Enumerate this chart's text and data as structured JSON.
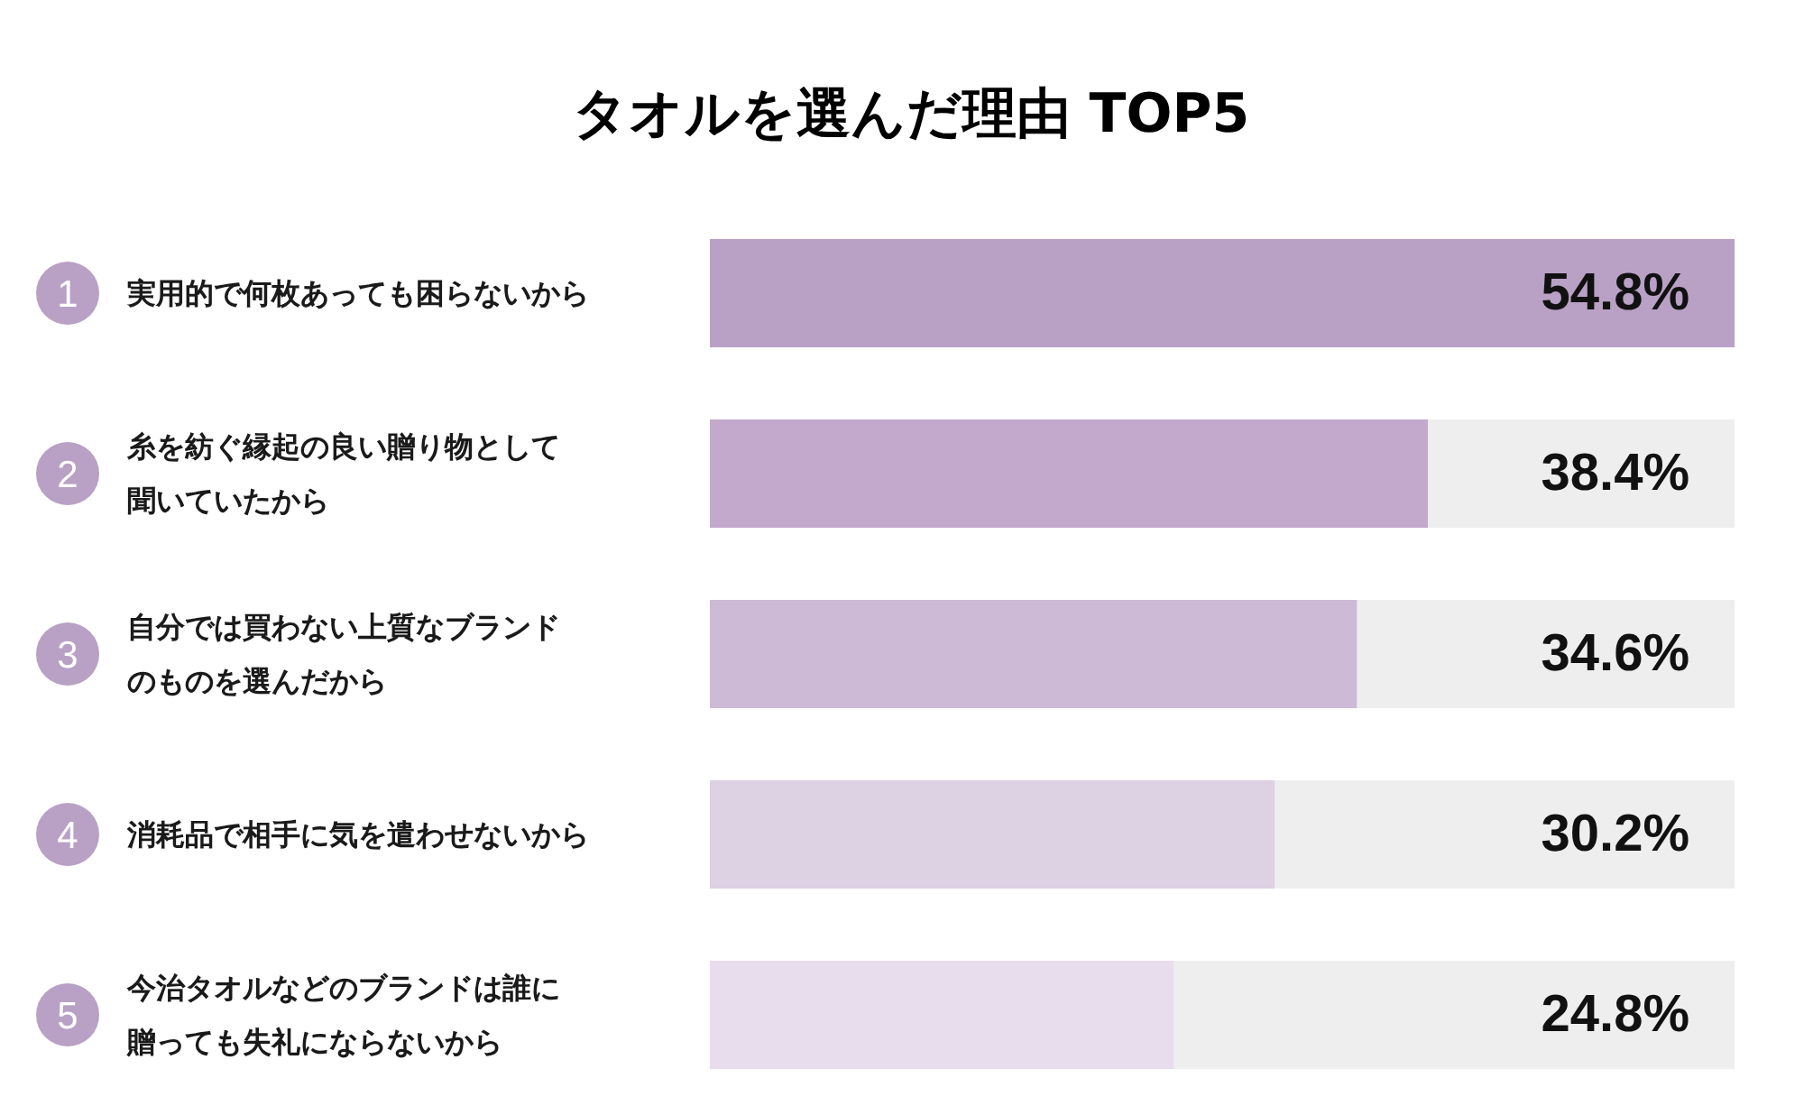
{
  "chart_data": {
    "type": "bar",
    "orientation": "horizontal",
    "title": "タオルを選んだ理由 TOP5",
    "categories": [
      "実用的で何枚あっても困らないから",
      "糸を紡ぐ縁起の良い贈り物として聞いていたから",
      "自分では買わない上質なブランドのものを選んだから",
      "消耗品で相手に気を遣わせないから",
      "今治タオルなどのブランドは誰に贈っても失礼にならないから"
    ],
    "values": [
      54.8,
      38.4,
      34.6,
      30.2,
      24.8
    ],
    "value_labels": [
      "54.8%",
      "38.4%",
      "34.6%",
      "30.2%",
      "24.8%"
    ],
    "colors": [
      "#b9a0c5",
      "#c3aacd",
      "#ccbad7",
      "#ddd1e4",
      "#e8dded"
    ],
    "annotations": [
      "1",
      "2",
      "3",
      "4",
      "5"
    ]
  }
}
